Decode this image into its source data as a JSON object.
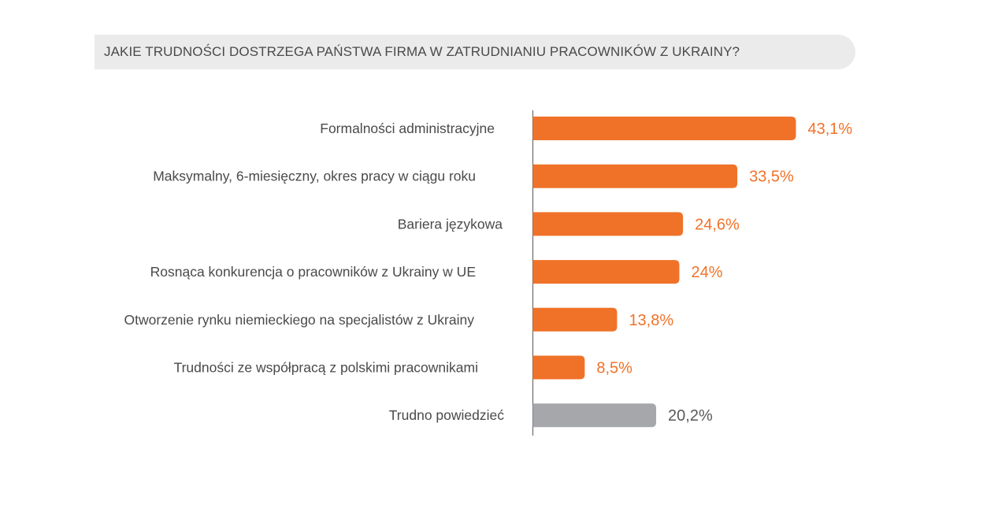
{
  "chart_data": {
    "type": "bar",
    "orientation": "horizontal",
    "title": "JAKIE TRUDNOŚCI DOSTRZEGA PAŃSTWA FIRMA W ZATRUDNIANIU PRACOWNIKÓW Z UKRAINY?",
    "xlim": [
      0,
      50
    ],
    "grid": false,
    "categories": [
      "Formalności administracyjne",
      "Maksymalny, 6-miesięczny, okres pracy w ciągu roku",
      "Bariera językowa",
      "Rosnąca konkurencja o pracowników z Ukrainy w UE",
      "Otworzenie rynku niemieckiego na specjalistów z Ukrainy",
      "Trudności ze współpracą z polskimi pracownikami",
      "Trudno powiedzieć"
    ],
    "values": [
      43.1,
      33.5,
      24.6,
      24,
      13.8,
      8.5,
      20.2
    ],
    "value_labels": [
      "43,1%",
      "33,5%",
      "24,6%",
      "24%",
      "13,8%",
      "8,5%",
      "20,2%"
    ],
    "bar_colors": [
      "#f07228",
      "#f07228",
      "#f07228",
      "#f07228",
      "#f07228",
      "#f07228",
      "#a5a7ab"
    ],
    "label_colors": [
      "#f07228",
      "#f07228",
      "#f07228",
      "#f07228",
      "#f07228",
      "#f07228",
      "#5a5a5a"
    ],
    "category_color": "#4a4a4a",
    "axis_color": "#6b6b6b"
  }
}
